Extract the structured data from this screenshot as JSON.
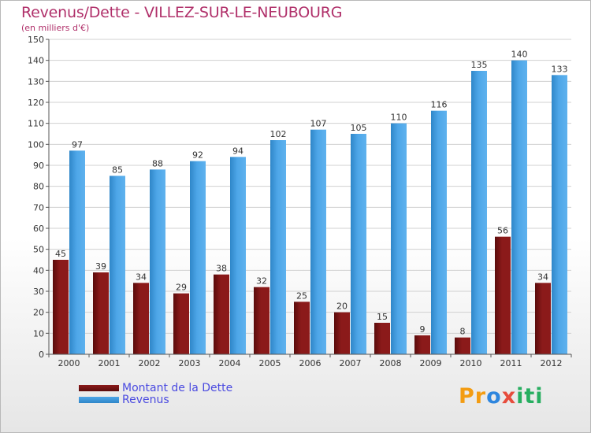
{
  "title": "Revenus/Dette - VILLEZ-SUR-LE-NEUBOURG",
  "subtitle": "(en milliers d'€)",
  "legend": {
    "debt_label": "Montant de la Dette",
    "revenue_label": "Revenus"
  },
  "logo": {
    "text": "Proxiti",
    "letters": [
      "P",
      "r",
      "o",
      "x",
      "i",
      "t",
      "i"
    ],
    "colors": [
      "#f39c12",
      "#f39c12",
      "#2e86de",
      "#e74c3c",
      "#27ae60",
      "#27ae60",
      "#27ae60"
    ]
  },
  "colors": {
    "debt": "#8b1a1a",
    "debt_dark": "#5a0b0b",
    "revenue": "#4da6e8",
    "revenue_dark": "#2f86c8",
    "grid": "#d0d0d0",
    "text": "#b0306a"
  },
  "chart_data": {
    "type": "bar",
    "title": "Revenus/Dette - VILLEZ-SUR-LE-NEUBOURG",
    "subtitle": "(en milliers d'€)",
    "xlabel": "",
    "ylabel": "",
    "categories": [
      "2000",
      "2001",
      "2002",
      "2003",
      "2004",
      "2005",
      "2006",
      "2007",
      "2008",
      "2009",
      "2010",
      "2011",
      "2012"
    ],
    "series": [
      {
        "name": "Montant de la Dette",
        "values": [
          45,
          39,
          34,
          29,
          38,
          32,
          25,
          20,
          15,
          9,
          8,
          56,
          34
        ]
      },
      {
        "name": "Revenus",
        "values": [
          97,
          85,
          88,
          92,
          94,
          102,
          107,
          105,
          110,
          116,
          135,
          140,
          133
        ]
      }
    ],
    "ylim": [
      0,
      150
    ],
    "yticks": [
      0,
      10,
      20,
      30,
      40,
      50,
      60,
      70,
      80,
      90,
      100,
      110,
      120,
      130,
      140,
      150
    ],
    "grid": true,
    "legend_position": "bottom-left"
  }
}
